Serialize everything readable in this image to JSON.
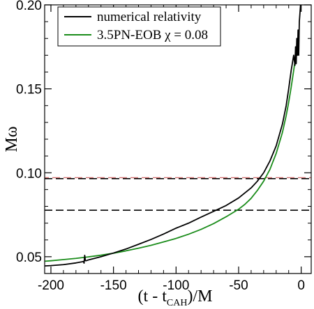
{
  "chart_data": {
    "type": "line",
    "xlabel": "(t - t",
    "xlabel_sub": "CAH",
    "xlabel_tail": ")/M",
    "ylabel": "Mω",
    "xlim": [
      -205,
      8
    ],
    "ylim": [
      0.04,
      0.2
    ],
    "x_ticks": [
      {
        "value": -200,
        "label": "-200"
      },
      {
        "value": -150,
        "label": "-150"
      },
      {
        "value": -100,
        "label": "-100"
      },
      {
        "value": -50,
        "label": "-50"
      },
      {
        "value": 0,
        "label": "0"
      }
    ],
    "y_ticks": [
      {
        "value": 0.05,
        "label": "0.05"
      },
      {
        "value": 0.1,
        "label": "0.10"
      },
      {
        "value": 0.15,
        "label": "0.15"
      },
      {
        "value": 0.2,
        "label": "0.20"
      }
    ],
    "x_minor_step": 10,
    "y_minor_step": 0.01,
    "legend_position": "top-left",
    "series": [
      {
        "name": "numerical relativity",
        "color": "#000000",
        "x": [
          -205,
          -200,
          -190,
          -180,
          -175,
          -174,
          -173.5,
          -173,
          -172.5,
          -172,
          -170,
          -160,
          -150,
          -140,
          -130,
          -120,
          -110,
          -100,
          -90,
          -80,
          -70,
          -60,
          -50,
          -40,
          -35,
          -30,
          -25,
          -20,
          -15,
          -12,
          -10,
          -8,
          -6,
          -5,
          -4.5,
          -4,
          -3.5,
          -3,
          -2.5,
          -2,
          -1.5,
          -1,
          -0.5
        ],
        "y": [
          0.0445,
          0.0447,
          0.0453,
          0.0463,
          0.047,
          0.0472,
          0.0462,
          0.0508,
          0.0478,
          0.0476,
          0.0481,
          0.05,
          0.0522,
          0.0546,
          0.0574,
          0.0603,
          0.0635,
          0.067,
          0.07,
          0.0736,
          0.077,
          0.0805,
          0.085,
          0.091,
          0.095,
          0.1,
          0.107,
          0.116,
          0.129,
          0.14,
          0.15,
          0.161,
          0.17,
          0.164,
          0.175,
          0.165,
          0.18,
          0.17,
          0.185,
          0.17,
          0.19,
          0.195,
          0.2
        ]
      },
      {
        "name": "3.5PN-EOB χ = 0.08",
        "color": "#1a8c1a",
        "x": [
          -205,
          -200,
          -190,
          -180,
          -170,
          -160,
          -150,
          -140,
          -130,
          -120,
          -110,
          -100,
          -90,
          -80,
          -70,
          -60,
          -50,
          -45,
          -40,
          -35,
          -30,
          -25,
          -20,
          -15,
          -12,
          -10,
          -8,
          -6,
          -5,
          -4
        ],
        "y": [
          0.0473,
          0.0476,
          0.0483,
          0.049,
          0.0499,
          0.0509,
          0.0521,
          0.0535,
          0.0551,
          0.0568,
          0.0588,
          0.0609,
          0.0634,
          0.0663,
          0.0697,
          0.0738,
          0.0783,
          0.0812,
          0.0848,
          0.0895,
          0.095,
          0.102,
          0.1115,
          0.124,
          0.134,
          0.142,
          0.151,
          0.161,
          0.166,
          0.171
        ]
      }
    ],
    "reference_lines": [
      {
        "kind": "horizontal",
        "y": 0.0965,
        "color": "#000000",
        "overlay_color": "#c04040",
        "style": "dashed"
      },
      {
        "kind": "horizontal",
        "y": 0.0777,
        "color": "#000000",
        "style": "dashed"
      }
    ]
  }
}
